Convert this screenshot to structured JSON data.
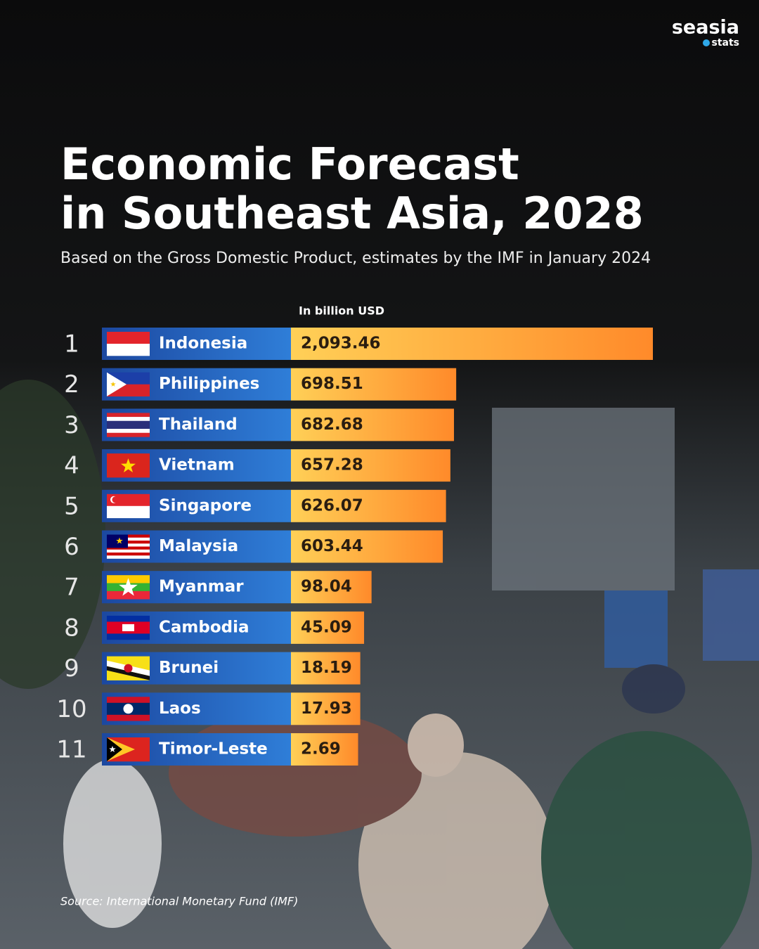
{
  "brand": {
    "name": "seasia",
    "tag": "stats"
  },
  "chart_data": {
    "type": "bar",
    "title": [
      "Economic Forecast",
      "in Southeast Asia, 2028"
    ],
    "subtitle": "Based on the Gross Domestic Product, estimates by the IMF  in January 2024",
    "unit_label": "In billion USD",
    "ranks": [
      1,
      2,
      3,
      4,
      5,
      6,
      7,
      8,
      9,
      10,
      11
    ],
    "categories": [
      "Indonesia",
      "Philippines",
      "Thailand",
      "Vietnam",
      "Singapore",
      "Malaysia",
      "Myanmar",
      "Cambodia",
      "Brunei",
      "Laos",
      "Timor-Leste"
    ],
    "values": [
      2093.46,
      698.51,
      682.68,
      657.28,
      626.07,
      603.44,
      98.04,
      45.09,
      18.19,
      17.93,
      2.69
    ],
    "value_labels": [
      "2,093.46",
      "698.51",
      "682.68",
      "657.28",
      "626.07",
      "603.44",
      "98.04",
      "45.09",
      "18.19",
      "17.93",
      "2.69"
    ],
    "color": "#ff9a33"
  },
  "source": "Source: International Monetary Fund (IMF)"
}
